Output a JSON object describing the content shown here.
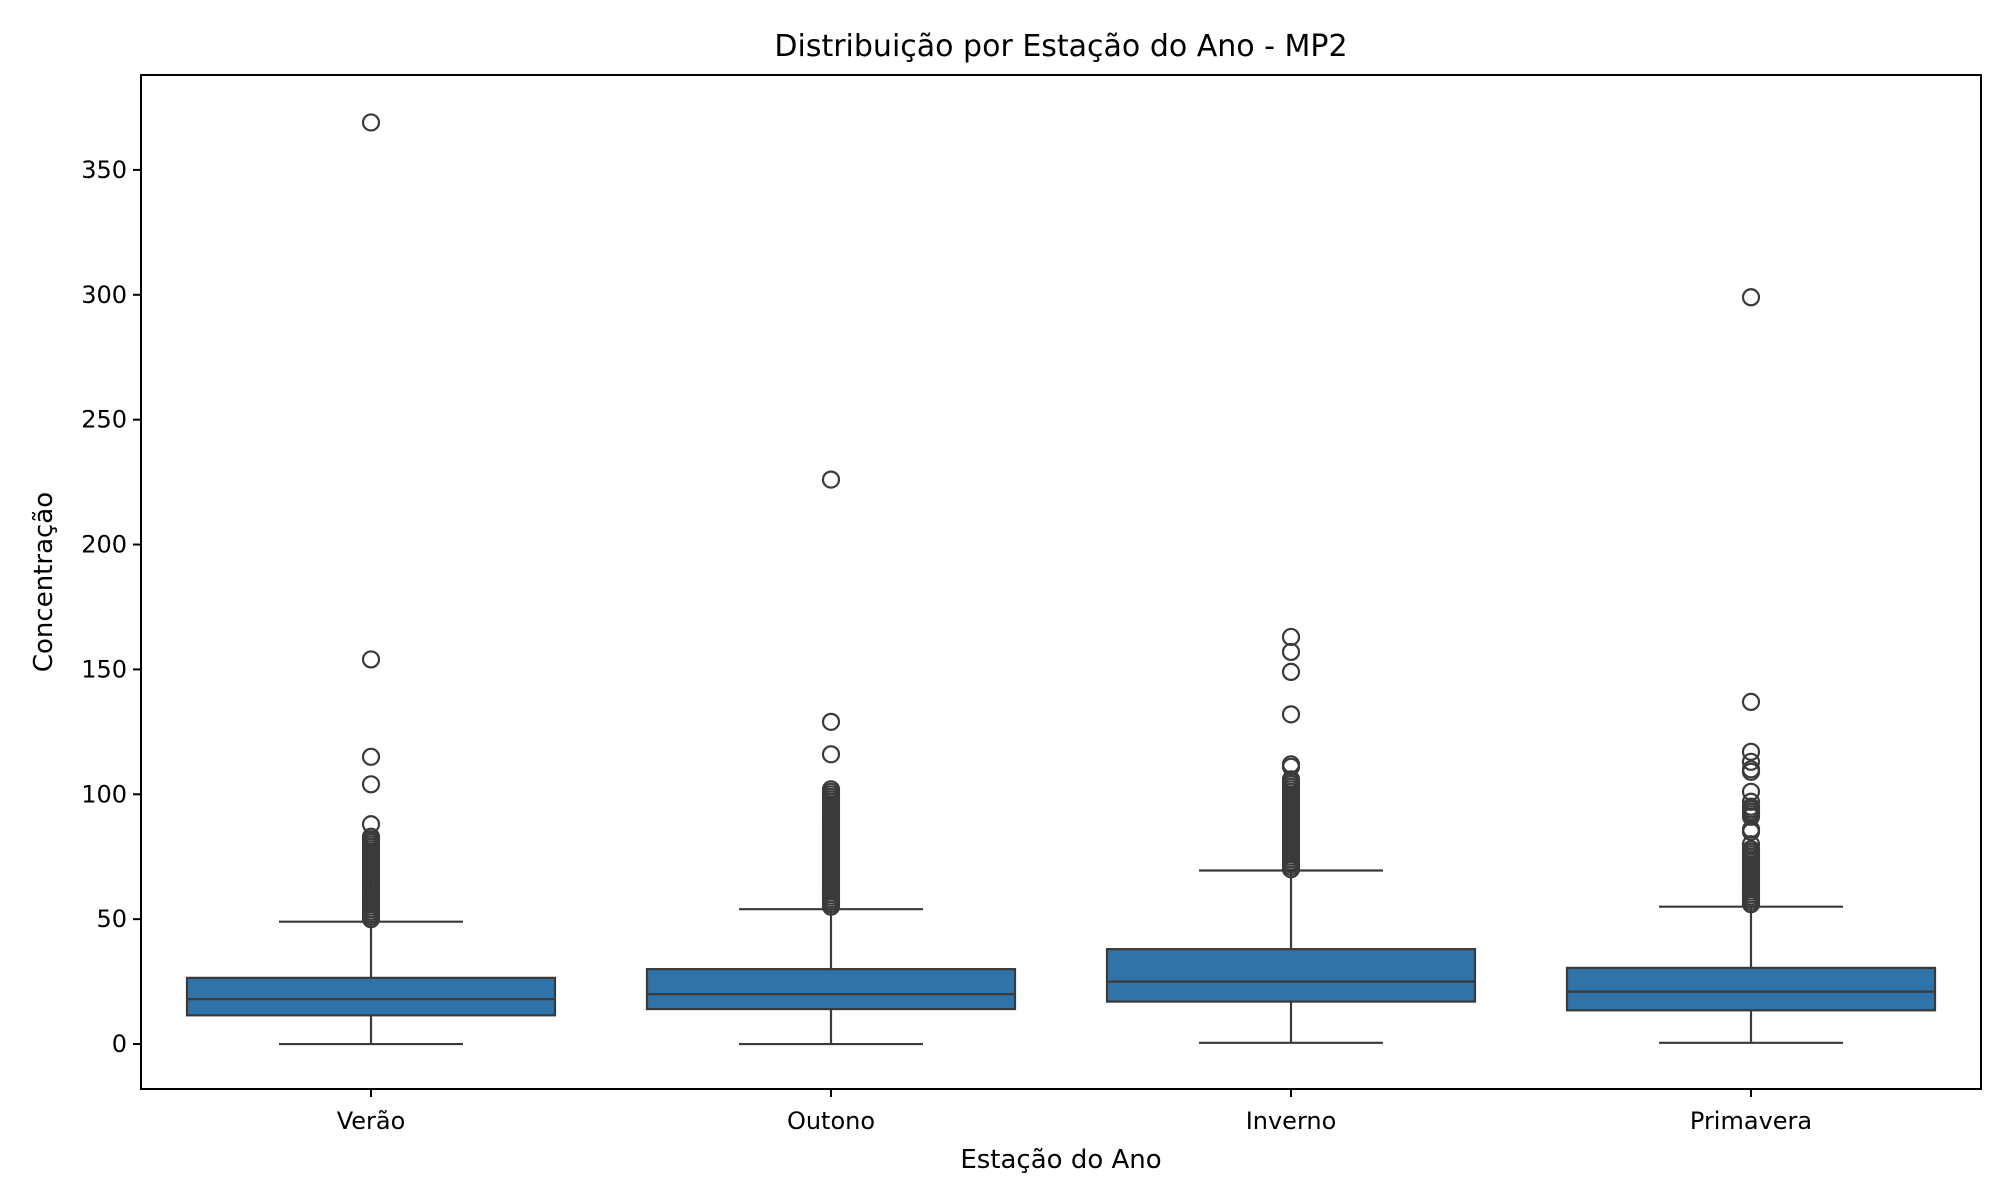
{
  "chart_data": {
    "type": "box",
    "title": "Distribuição por Estação do Ano - MP2",
    "xlabel": "Estação do Ano",
    "ylabel": "Concentração",
    "categories": [
      "Verão",
      "Outono",
      "Inverno",
      "Primavera"
    ],
    "ylim": [
      -18,
      388
    ],
    "yticks": [
      0,
      50,
      100,
      150,
      200,
      250,
      300,
      350
    ],
    "grid": false,
    "legend": "none",
    "box_color": "#2f73a8",
    "line_color": "#3a3a3a",
    "boxes": [
      {
        "category": "Verão",
        "whisker_low": 0,
        "q1": 11.5,
        "median": 18,
        "q3": 26.5,
        "whisker_high": 49,
        "outliers": [
          50,
          51,
          52,
          53,
          54,
          55,
          56,
          57,
          58,
          59,
          60,
          61,
          62,
          63,
          64,
          65,
          66,
          67,
          68,
          69,
          70,
          71,
          72,
          73,
          74,
          75,
          76,
          77,
          78,
          79,
          80,
          81,
          82,
          83,
          88,
          104,
          115,
          154,
          369
        ]
      },
      {
        "category": "Outono",
        "whisker_low": 0,
        "q1": 14,
        "median": 20,
        "q3": 30,
        "whisker_high": 54,
        "outliers": [
          55,
          56,
          57,
          58,
          59,
          60,
          61,
          62,
          63,
          64,
          65,
          66,
          67,
          68,
          69,
          70,
          71,
          72,
          73,
          74,
          75,
          76,
          77,
          78,
          79,
          80,
          81,
          82,
          83,
          84,
          85,
          86,
          87,
          88,
          89,
          90,
          91,
          92,
          93,
          94,
          95,
          96,
          97,
          98,
          99,
          100,
          101,
          102,
          116,
          129,
          226
        ]
      },
      {
        "category": "Inverno",
        "whisker_low": 0.5,
        "q1": 17,
        "median": 25,
        "q3": 38,
        "whisker_high": 69.5,
        "outliers": [
          70,
          71,
          72,
          73,
          74,
          75,
          76,
          77,
          78,
          79,
          80,
          81,
          82,
          83,
          84,
          85,
          86,
          87,
          88,
          89,
          90,
          91,
          92,
          93,
          94,
          95,
          96,
          97,
          98,
          99,
          100,
          101,
          102,
          103,
          104,
          105,
          106,
          111,
          112,
          132,
          149,
          157,
          163
        ]
      },
      {
        "category": "Primavera",
        "whisker_low": 0.5,
        "q1": 13.5,
        "median": 21,
        "q3": 30.5,
        "whisker_high": 55,
        "outliers": [
          56,
          57,
          58,
          59,
          60,
          61,
          62,
          63,
          64,
          65,
          66,
          67,
          68,
          69,
          70,
          71,
          72,
          73,
          74,
          75,
          76,
          77,
          78,
          80,
          85,
          86,
          91,
          92,
          93,
          94,
          95,
          97,
          101,
          109,
          110,
          113,
          117,
          137,
          299
        ]
      }
    ]
  }
}
